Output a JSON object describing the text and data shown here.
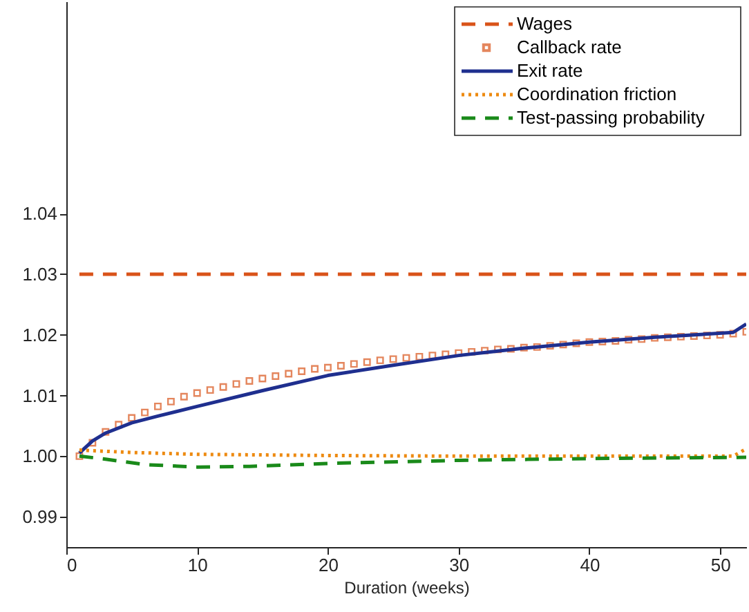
{
  "chart_data": {
    "type": "line",
    "xlabel": "Duration (weeks)",
    "xlim": [
      0,
      52
    ],
    "xticks": [
      0,
      10,
      20,
      30,
      40,
      50
    ],
    "ylim": [
      0.985,
      1.075
    ],
    "yticks": [
      0.99,
      {
        "value": 1.0,
        "label": "1.00"
      },
      1.01,
      1.02,
      1.03,
      1.04
    ],
    "grid": false,
    "legend": "top right",
    "series": [
      {
        "name": "Wages",
        "color": "#d95319",
        "line_style": "dashed",
        "x": [
          1,
          52
        ],
        "values": [
          1.03,
          1.03
        ]
      },
      {
        "name": "Callback rate",
        "color": "#d95319",
        "type": "scatter",
        "marker": "square",
        "x": [
          1,
          2,
          3,
          4,
          5,
          6,
          7,
          8,
          9,
          10,
          11,
          12,
          13,
          14,
          15,
          16,
          17,
          18,
          19,
          20,
          21,
          22,
          23,
          24,
          25,
          26,
          27,
          28,
          29,
          30,
          31,
          32,
          33,
          34,
          35,
          36,
          37,
          38,
          39,
          40,
          41,
          42,
          43,
          44,
          45,
          46,
          47,
          48,
          49,
          50,
          51,
          52
        ],
        "values": [
          1.0,
          1.0022,
          1.004,
          1.0052,
          1.0063,
          1.0072,
          1.0082,
          1.009,
          1.0098,
          1.0104,
          1.0109,
          1.0114,
          1.0119,
          1.0124,
          1.0128,
          1.0132,
          1.0136,
          1.014,
          1.0144,
          1.0146,
          1.0149,
          1.0152,
          1.0155,
          1.0158,
          1.016,
          1.0162,
          1.0164,
          1.0166,
          1.0168,
          1.017,
          1.0172,
          1.0174,
          1.0176,
          1.0177,
          1.0179,
          1.018,
          1.0182,
          1.0184,
          1.0186,
          1.0188,
          1.0189,
          1.019,
          1.0192,
          1.0193,
          1.0195,
          1.0196,
          1.0197,
          1.0198,
          1.0199,
          1.02,
          1.0202,
          1.0205
        ]
      },
      {
        "name": "Exit rate",
        "color": "#1f2f8f",
        "line_style": "solid",
        "x": [
          1,
          2,
          3,
          5,
          7,
          10,
          15,
          20,
          25,
          30,
          35,
          40,
          45,
          51,
          52
        ],
        "values": [
          1.0005,
          1.0025,
          1.0038,
          1.0055,
          1.0066,
          1.0082,
          1.0108,
          1.0133,
          1.015,
          1.0166,
          1.0178,
          1.0188,
          1.0196,
          1.0204,
          1.0218
        ]
      },
      {
        "name": "Coordination friction",
        "color": "#ed8a11",
        "line_style": "dotted",
        "x": [
          1,
          3,
          5,
          10,
          20,
          30,
          51,
          52
        ],
        "values": [
          1.001,
          1.0008,
          1.0006,
          1.0003,
          1.0001,
          1.0,
          1.0,
          1.0012
        ]
      },
      {
        "name": "Test-passing probability",
        "color": "#1a8a1a",
        "line_style": "dashed",
        "x": [
          1,
          3,
          6,
          10,
          14,
          20,
          30,
          40,
          52
        ],
        "values": [
          1.0,
          0.9995,
          0.9986,
          0.9982,
          0.9983,
          0.9988,
          0.9993,
          0.9996,
          0.9998
        ]
      }
    ]
  }
}
